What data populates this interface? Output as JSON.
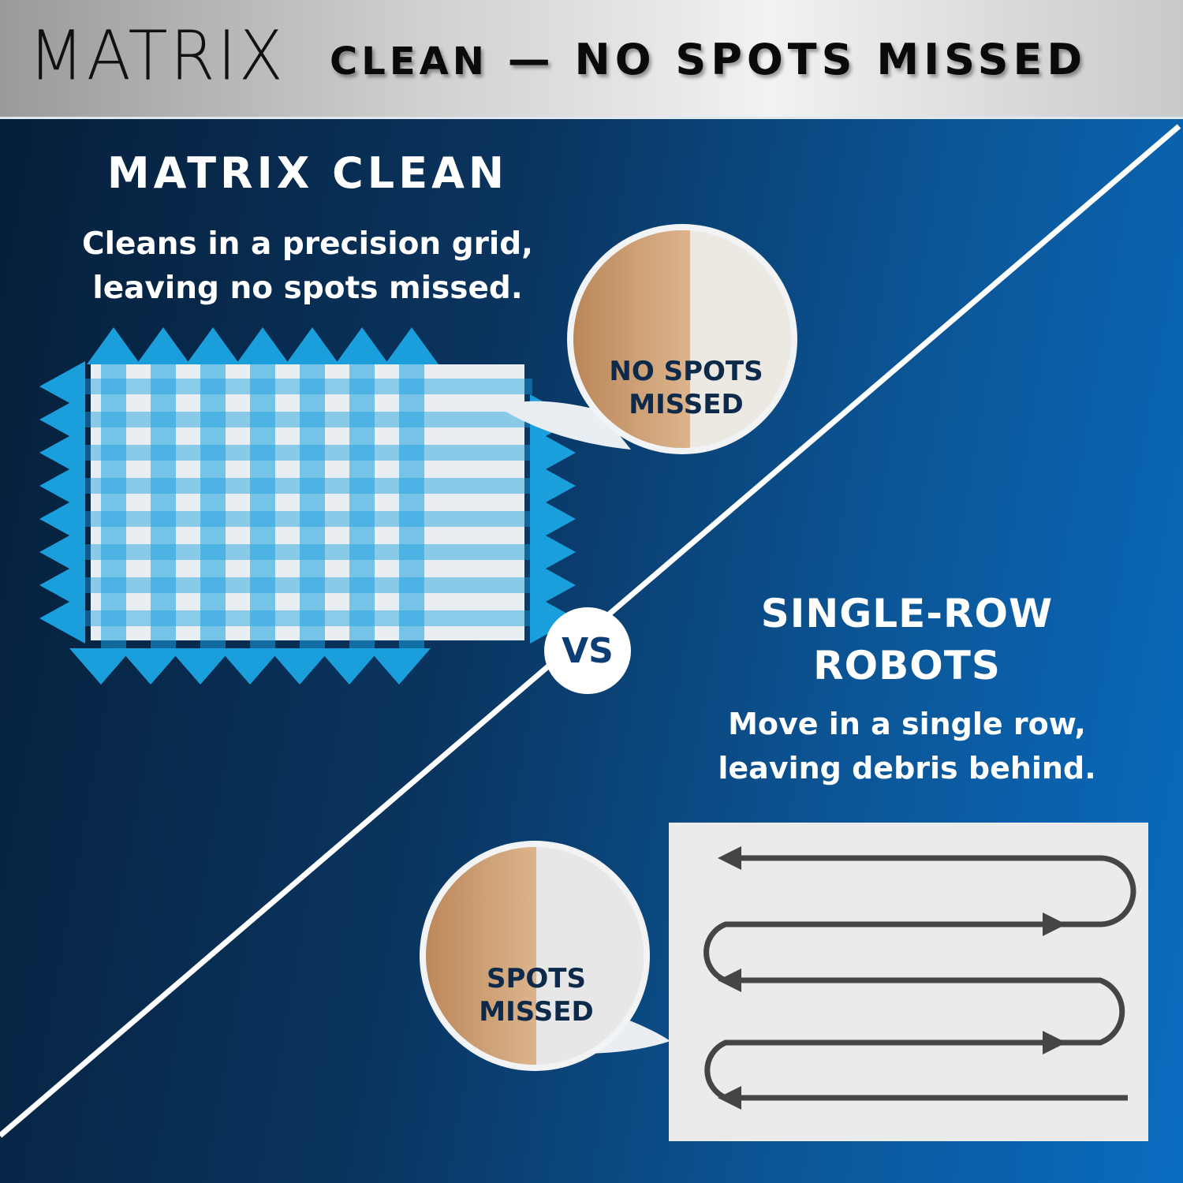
{
  "header": {
    "logo_text": "MATRIX",
    "headline_light": "CLEAN",
    "headline_bold": "— NO SPOTS MISSED"
  },
  "left_panel": {
    "title": "MATRIX CLEAN",
    "description_line1": "Cleans in a precision grid,",
    "description_line2": "leaving no spots missed.",
    "bubble_label_line1": "NO SPOTS",
    "bubble_label_line2": "MISSED"
  },
  "divider": {
    "label": "VS"
  },
  "right_panel": {
    "title_line1": "SINGLE-ROW",
    "title_line2": "ROBOTS",
    "description_line1": "Move in a single row,",
    "description_line2": "leaving debris behind.",
    "bubble_label_line1": "SPOTS",
    "bubble_label_line2": "MISSED"
  },
  "colors": {
    "navy": "#061f3a",
    "blue": "#0a6cc0",
    "grid_blue": "#1aa0e0",
    "path_gray": "#444444",
    "wood": "#c99a6e"
  },
  "icons": [
    "grid-arrows-icon",
    "serpentine-path-icon",
    "magnifier-bubble-icon"
  ]
}
